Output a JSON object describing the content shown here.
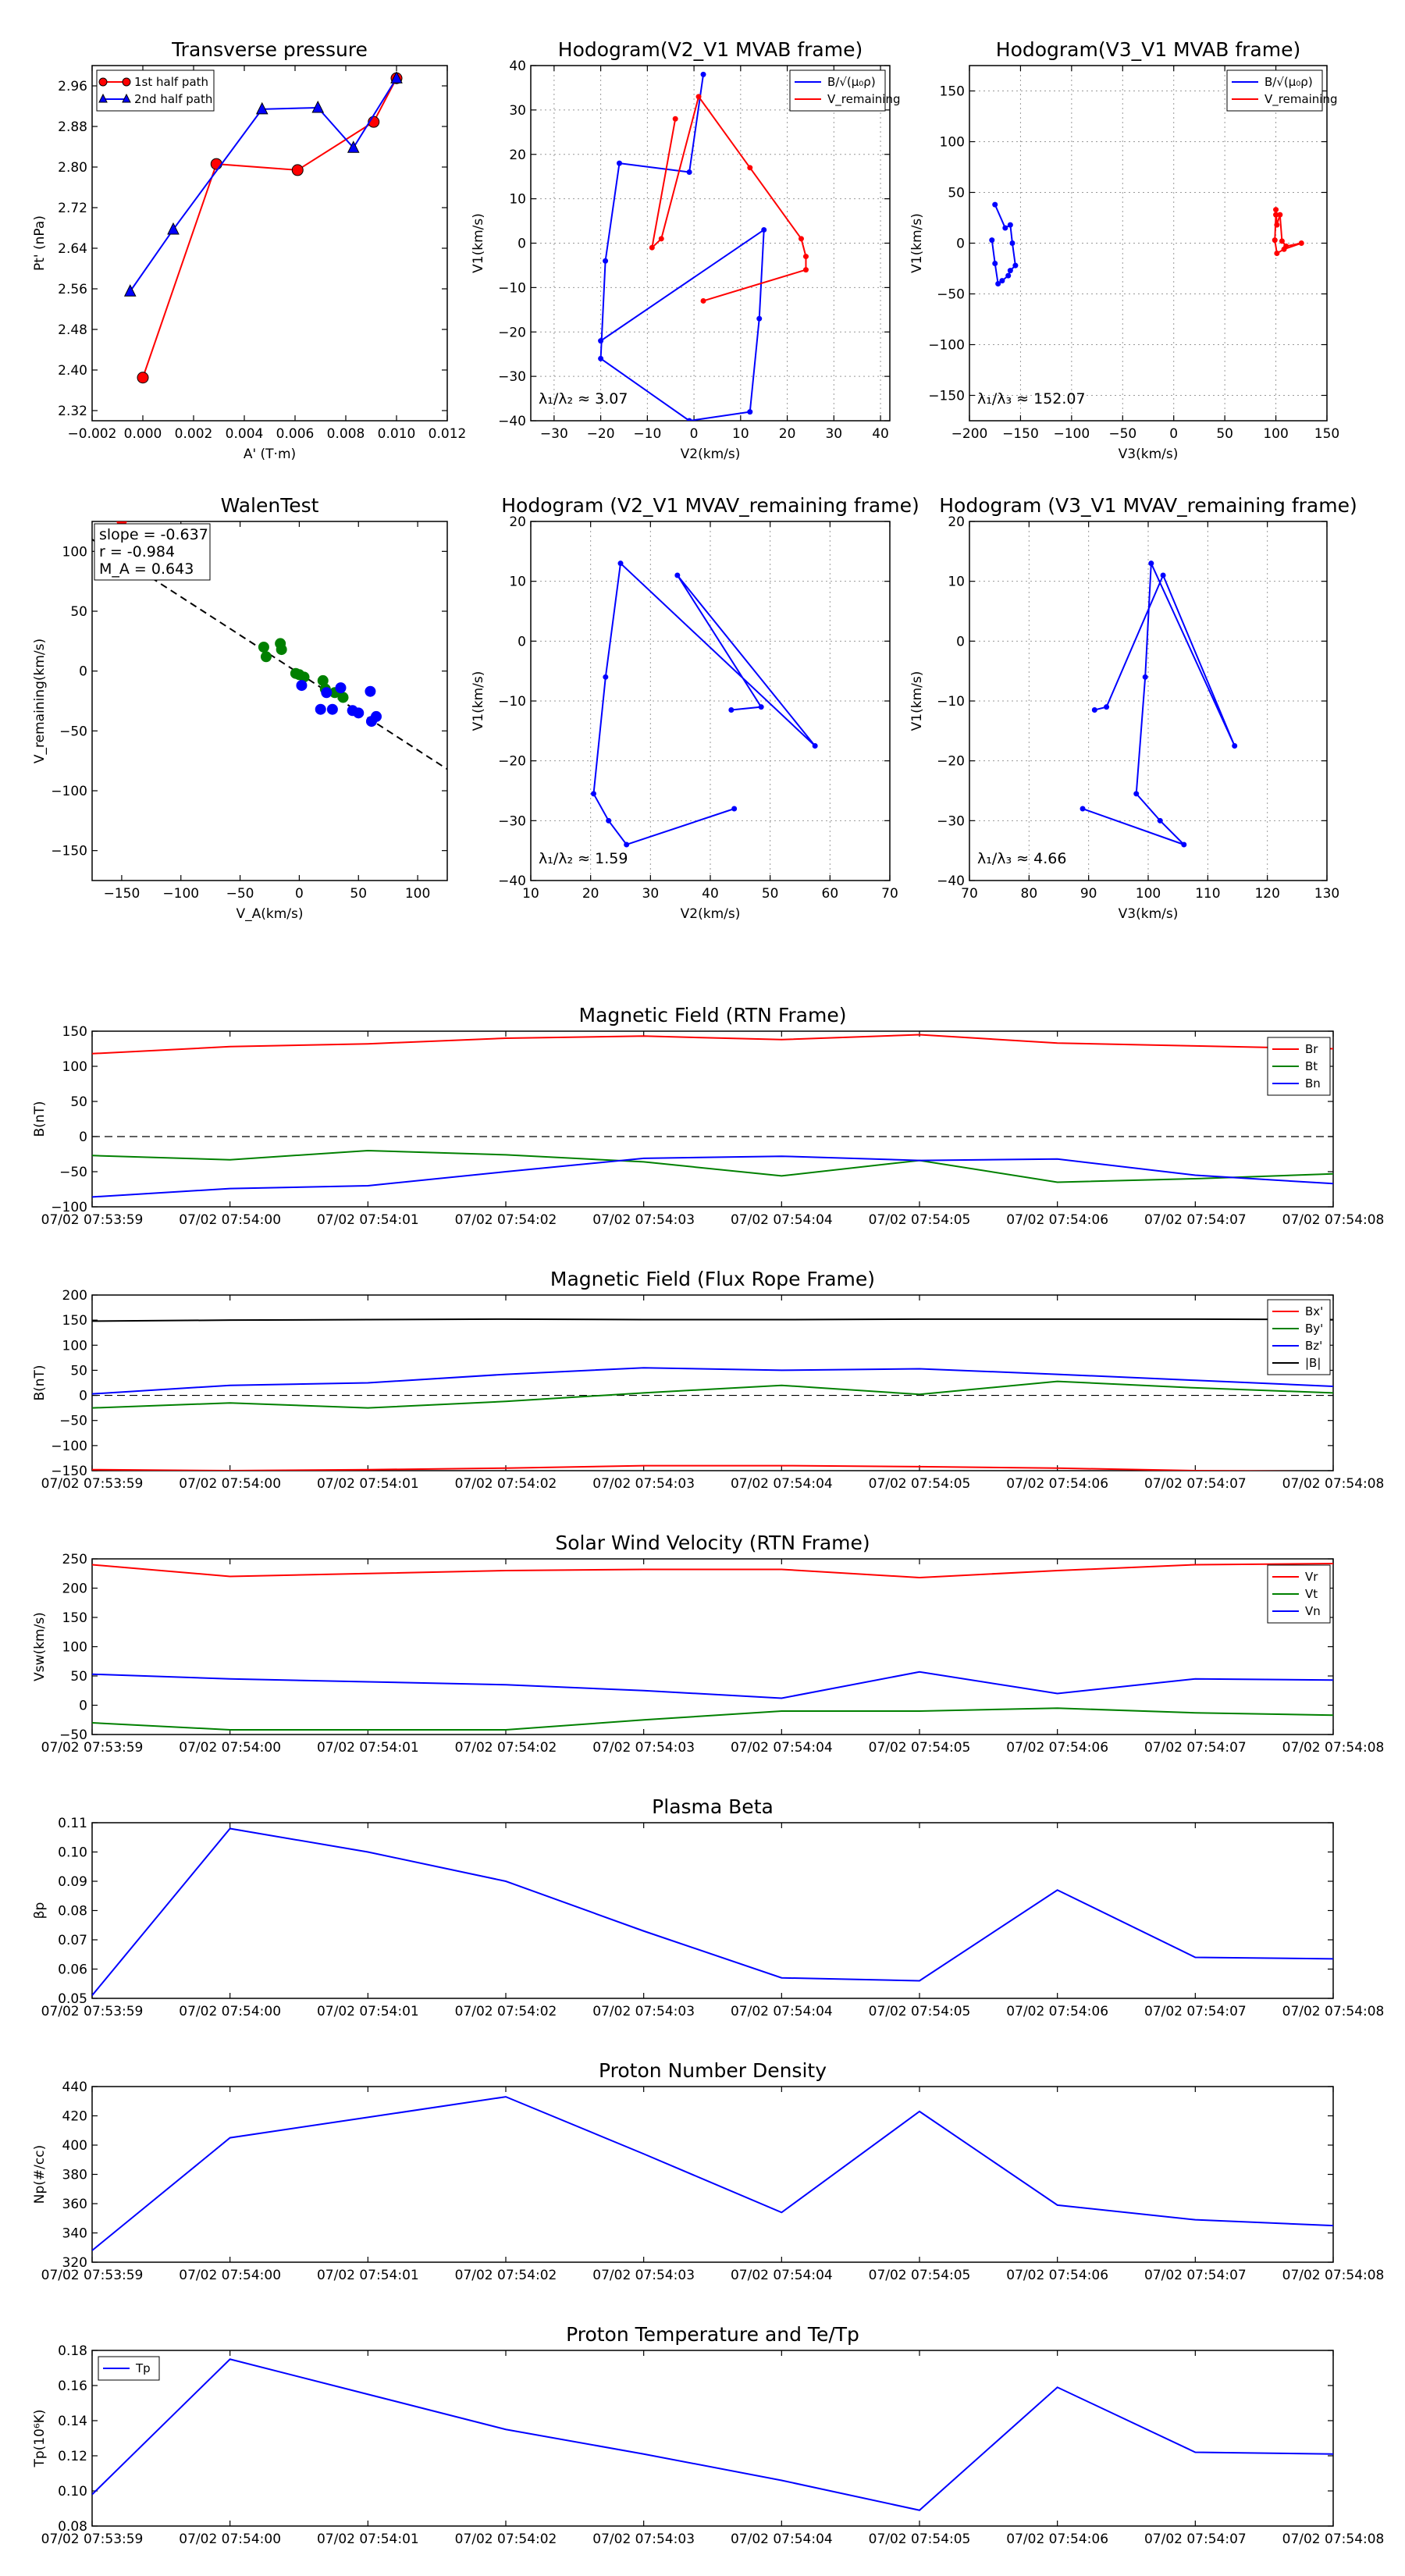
{
  "panels": [
    {
      "key": "tp",
      "type": "scatter",
      "title": "Transverse pressure",
      "xlabel": "A' (T·m)",
      "ylabel": "Pt' (nPa)",
      "xlim": [
        -0.002,
        0.012
      ],
      "ylim": [
        2.3,
        3.0
      ],
      "xticks": [
        -0.002,
        0,
        0.002,
        0.004,
        0.006,
        0.008,
        0.01,
        0.012
      ],
      "xticklabels": [
        "−0.002",
        "0.000",
        "0.002",
        "0.004",
        "0.006",
        "0.008",
        "0.010",
        "0.012"
      ],
      "yticks": [
        2.32,
        2.4,
        2.48,
        2.56,
        2.64,
        2.72,
        2.8,
        2.88,
        2.96
      ],
      "yticklabels": [
        "2.32",
        "2.40",
        "2.48",
        "2.56",
        "2.64",
        "2.72",
        "2.80",
        "2.88",
        "2.96"
      ],
      "grid": false,
      "legend_pos": "top-left",
      "series": [
        {
          "name": "1st half path",
          "color": "#ff0000",
          "marker": "circle",
          "x": [
            0.0,
            0.0029,
            0.0061,
            0.0091,
            0.01
          ],
          "y": [
            2.385,
            2.806,
            2.794,
            2.889,
            2.975
          ]
        },
        {
          "name": "2nd half path",
          "color": "#0000ff",
          "marker": "triangle",
          "x": [
            -0.0005,
            0.0012,
            0.0047,
            0.0069,
            0.0083,
            0.01
          ],
          "y": [
            2.555,
            2.677,
            2.914,
            2.917,
            2.838,
            2.975
          ]
        }
      ]
    },
    {
      "key": "h1",
      "type": "line",
      "title": "Hodogram(V2_V1 MVAB frame)",
      "xlabel": "V2(km/s)",
      "ylabel": "V1(km/s)",
      "xlim": [
        -35,
        42
      ],
      "ylim": [
        -40,
        40
      ],
      "xticks": [
        -30,
        -20,
        -10,
        0,
        10,
        20,
        30,
        40
      ],
      "yticks": [
        -40,
        -30,
        -20,
        -10,
        0,
        10,
        20,
        30,
        40
      ],
      "grid": true,
      "legend_pos": "top-right",
      "annotation": "λ₁/λ₂ ≈ 3.07",
      "series": [
        {
          "name": "B/√(μ₀ρ)",
          "color": "#0000ff",
          "x": [
            2,
            -1,
            -16,
            -19,
            -20,
            -1,
            12,
            14,
            15,
            -20
          ],
          "y": [
            38,
            16,
            18,
            -4,
            -26,
            -40,
            -38,
            -17,
            3,
            -22
          ]
        },
        {
          "name": "V_remaining",
          "color": "#ff0000",
          "x": [
            -4,
            -9,
            -7,
            1,
            12,
            23,
            24,
            24,
            2
          ],
          "y": [
            28,
            -1,
            1,
            33,
            17,
            1,
            -3,
            -6,
            -13
          ]
        }
      ]
    },
    {
      "key": "h2",
      "type": "line",
      "title": "Hodogram(V3_V1 MVAB frame)",
      "xlabel": "V3(km/s)",
      "ylabel": "V1(km/s)",
      "xlim": [
        -200,
        150
      ],
      "ylim": [
        -175,
        175
      ],
      "xticks": [
        -200,
        -150,
        -100,
        -50,
        0,
        50,
        100,
        150
      ],
      "yticks": [
        -150,
        -100,
        -50,
        0,
        50,
        100,
        150
      ],
      "grid": true,
      "legend_pos": "top-right",
      "annotation": "λ₁/λ₃ ≈ 152.07",
      "series": [
        {
          "name": "B/√(μ₀ρ)",
          "color": "#0000ff",
          "x": [
            -175,
            -165,
            -160,
            -158,
            -155,
            -160,
            -162,
            -168,
            -172,
            -175,
            -178
          ],
          "y": [
            38,
            15,
            18,
            0,
            -22,
            -27,
            -32,
            -37,
            -40,
            -20,
            3
          ]
        },
        {
          "name": "V_remaining",
          "color": "#ff0000",
          "x": [
            100,
            101,
            104,
            106,
            110,
            125,
            108,
            101,
            99,
            100
          ],
          "y": [
            33,
            18,
            28,
            2,
            -3,
            0,
            -6,
            -10,
            3,
            28
          ]
        }
      ]
    },
    {
      "key": "walen",
      "type": "scatter",
      "title": "WalenTest",
      "xlabel": "V_A(km/s)",
      "ylabel": "V_remaining(km/s)",
      "xlim": [
        -175,
        125
      ],
      "ylim": [
        -175,
        125
      ],
      "xticks": [
        -150,
        -100,
        -50,
        0,
        50,
        100
      ],
      "yticks": [
        -150,
        -100,
        -50,
        0,
        50,
        100
      ],
      "grid": false,
      "stats": [
        "slope = -0.637",
        "r = -0.984",
        "M_A = 0.643"
      ],
      "fit_line": {
        "x": [
          -175,
          125
        ],
        "y": [
          110,
          -82
        ]
      },
      "series": [
        {
          "name": "green",
          "color": "#008000",
          "x": [
            -30,
            -28,
            -16,
            -15,
            -3,
            0,
            4,
            20,
            22,
            30,
            37
          ],
          "y": [
            20,
            12,
            23,
            18,
            -2,
            -3,
            -5,
            -8,
            -15,
            -18,
            -22
          ]
        },
        {
          "name": "blue",
          "color": "#0000ff",
          "x": [
            2,
            18,
            23,
            28,
            35,
            45,
            50,
            60,
            61,
            65
          ],
          "y": [
            -12,
            -32,
            -18,
            -32,
            -14,
            -33,
            -35,
            -17,
            -42,
            -38
          ]
        },
        {
          "name": "red",
          "color": "#ff0000",
          "x": [
            -150
          ],
          "y": [
            126
          ]
        }
      ]
    },
    {
      "key": "h3",
      "type": "line",
      "title": "Hodogram (V2_V1 MVAV_remaining frame)",
      "xlabel": "V2(km/s)",
      "ylabel": "V1(km/s)",
      "xlim": [
        10,
        70
      ],
      "ylim": [
        -40,
        20
      ],
      "xticks": [
        10,
        20,
        30,
        40,
        50,
        60,
        70
      ],
      "yticks": [
        -40,
        -30,
        -20,
        -10,
        0,
        10,
        20
      ],
      "grid": true,
      "annotation": "λ₁/λ₂ ≈ 1.59",
      "series": [
        {
          "name": "B",
          "color": "#0000ff",
          "x": [
            44,
            26,
            23,
            20.5,
            22.5,
            25,
            57.5,
            34.5,
            48.5,
            43.5
          ],
          "y": [
            -28,
            -34,
            -30,
            -25.5,
            -6,
            13,
            -17.5,
            11,
            -11,
            -11.5
          ]
        }
      ]
    },
    {
      "key": "h4",
      "type": "line",
      "title": "Hodogram (V3_V1 MVAV_remaining frame)",
      "xlabel": "V3(km/s)",
      "ylabel": "V1(km/s)",
      "xlim": [
        70,
        130
      ],
      "ylim": [
        -40,
        20
      ],
      "xticks": [
        70,
        80,
        90,
        100,
        110,
        120,
        130
      ],
      "yticks": [
        -40,
        -30,
        -20,
        -10,
        0,
        10,
        20
      ],
      "grid": true,
      "annotation": "λ₁/λ₃ ≈ 4.66",
      "series": [
        {
          "name": "B",
          "color": "#0000ff",
          "x": [
            89,
            106,
            102,
            98,
            99.5,
            100.5,
            114.5,
            102.5,
            93,
            91
          ],
          "y": [
            -28,
            -34,
            -30,
            -25.5,
            -6,
            13,
            -17.5,
            11,
            -11,
            -11.5
          ]
        }
      ]
    },
    {
      "key": "brtn",
      "type": "timeseries",
      "title": "Magnetic Field (RTN Frame)",
      "ylabel": "B(nT)",
      "ylim": [
        -100,
        150
      ],
      "yticks": [
        -100,
        -50,
        0,
        50,
        100,
        150
      ],
      "legend_pos": "right",
      "zero_line": true,
      "series": [
        {
          "name": "Br",
          "color": "#ff0000",
          "values": [
            118,
            128,
            132,
            140,
            143,
            138,
            145,
            133,
            129,
            125
          ]
        },
        {
          "name": "Bt",
          "color": "#008000",
          "values": [
            -27,
            -33,
            -20,
            -26,
            -36,
            -56,
            -34,
            -65,
            -60,
            -53
          ]
        },
        {
          "name": "Bn",
          "color": "#0000ff",
          "values": [
            -86,
            -74,
            -70,
            -50,
            -31,
            -28,
            -34,
            -32,
            -55,
            -67
          ]
        }
      ]
    },
    {
      "key": "bflux",
      "type": "timeseries",
      "title": "Magnetic Field (Flux Rope Frame)",
      "ylabel": "B(nT)",
      "ylim": [
        -150,
        200
      ],
      "yticks": [
        -150,
        -100,
        -50,
        0,
        50,
        100,
        150,
        200
      ],
      "legend_pos": "top-right",
      "zero_line": true,
      "series": [
        {
          "name": "Bx'",
          "color": "#ff0000",
          "values": [
            -148,
            -150,
            -148,
            -145,
            -140,
            -140,
            -142,
            -145,
            -150,
            -152
          ]
        },
        {
          "name": "By'",
          "color": "#008000",
          "values": [
            -25,
            -15,
            -25,
            -12,
            5,
            20,
            2,
            28,
            15,
            5
          ]
        },
        {
          "name": "Bz'",
          "color": "#0000ff",
          "values": [
            3,
            20,
            25,
            42,
            55,
            50,
            53,
            42,
            30,
            18
          ]
        },
        {
          "name": "|B|",
          "color": "#000000",
          "values": [
            148,
            150,
            151,
            152,
            151,
            151,
            152,
            152,
            152,
            151
          ]
        }
      ]
    },
    {
      "key": "vsw",
      "type": "timeseries",
      "title": "Solar Wind Velocity (RTN Frame)",
      "ylabel": "Vsw(km/s)",
      "ylim": [
        -50,
        250
      ],
      "yticks": [
        -50,
        0,
        50,
        100,
        150,
        200,
        250
      ],
      "legend_pos": "right",
      "zero_line": false,
      "series": [
        {
          "name": "Vr",
          "color": "#ff0000",
          "values": [
            240,
            220,
            225,
            230,
            232,
            232,
            218,
            230,
            240,
            242
          ]
        },
        {
          "name": "Vt",
          "color": "#008000",
          "values": [
            -30,
            -42,
            -42,
            -42,
            -25,
            -10,
            -10,
            -5,
            -13,
            -17
          ]
        },
        {
          "name": "Vn",
          "color": "#0000ff",
          "values": [
            53,
            45,
            40,
            35,
            25,
            12,
            57,
            20,
            45,
            43
          ]
        }
      ]
    },
    {
      "key": "beta",
      "type": "timeseries",
      "title": "Plasma Beta",
      "ylabel": "βp",
      "ylim": [
        0.05,
        0.11
      ],
      "yticks": [
        0.05,
        0.06,
        0.07,
        0.08,
        0.09,
        0.1,
        0.11
      ],
      "yticklabels": [
        "0.05",
        "0.06",
        "0.07",
        "0.08",
        "0.09",
        "0.10",
        "0.11"
      ],
      "zero_line": false,
      "series": [
        {
          "name": "beta",
          "color": "#0000ff",
          "values": [
            0.051,
            0.108,
            0.1,
            0.09,
            0.073,
            0.057,
            0.056,
            0.087,
            0.064,
            0.0635
          ]
        }
      ]
    },
    {
      "key": "np",
      "type": "timeseries",
      "title": "Proton Number Density",
      "ylabel": "Np(#/cc)",
      "ylim": [
        320,
        440
      ],
      "yticks": [
        320,
        340,
        360,
        380,
        400,
        420,
        440
      ],
      "zero_line": false,
      "series": [
        {
          "name": "Np",
          "color": "#0000ff",
          "values": [
            328,
            405,
            419,
            433,
            394,
            354,
            423,
            359,
            349,
            345
          ]
        }
      ]
    },
    {
      "key": "tpr",
      "type": "timeseries",
      "title": "Proton Temperature and Te/Tp",
      "ylabel": "Tp(10⁶K)",
      "ylim": [
        0.08,
        0.18
      ],
      "yticks": [
        0.08,
        0.1,
        0.12,
        0.14,
        0.16,
        0.18
      ],
      "yticklabels": [
        "0.08",
        "0.10",
        "0.12",
        "0.14",
        "0.16",
        "0.18"
      ],
      "legend_pos": "top-left",
      "zero_line": false,
      "series": [
        {
          "name": "Tp",
          "color": "#0000ff",
          "values": [
            0.098,
            0.175,
            0.155,
            0.135,
            0.121,
            0.106,
            0.089,
            0.159,
            0.122,
            0.121
          ]
        }
      ]
    }
  ],
  "time_labels": [
    "07/02 07:53:59",
    "07/02 07:54:00",
    "07/02 07:54:01",
    "07/02 07:54:02",
    "07/02 07:54:03",
    "07/02 07:54:04",
    "07/02 07:54:05",
    "07/02 07:54:06",
    "07/02 07:54:07",
    "07/02 07:54:08"
  ]
}
